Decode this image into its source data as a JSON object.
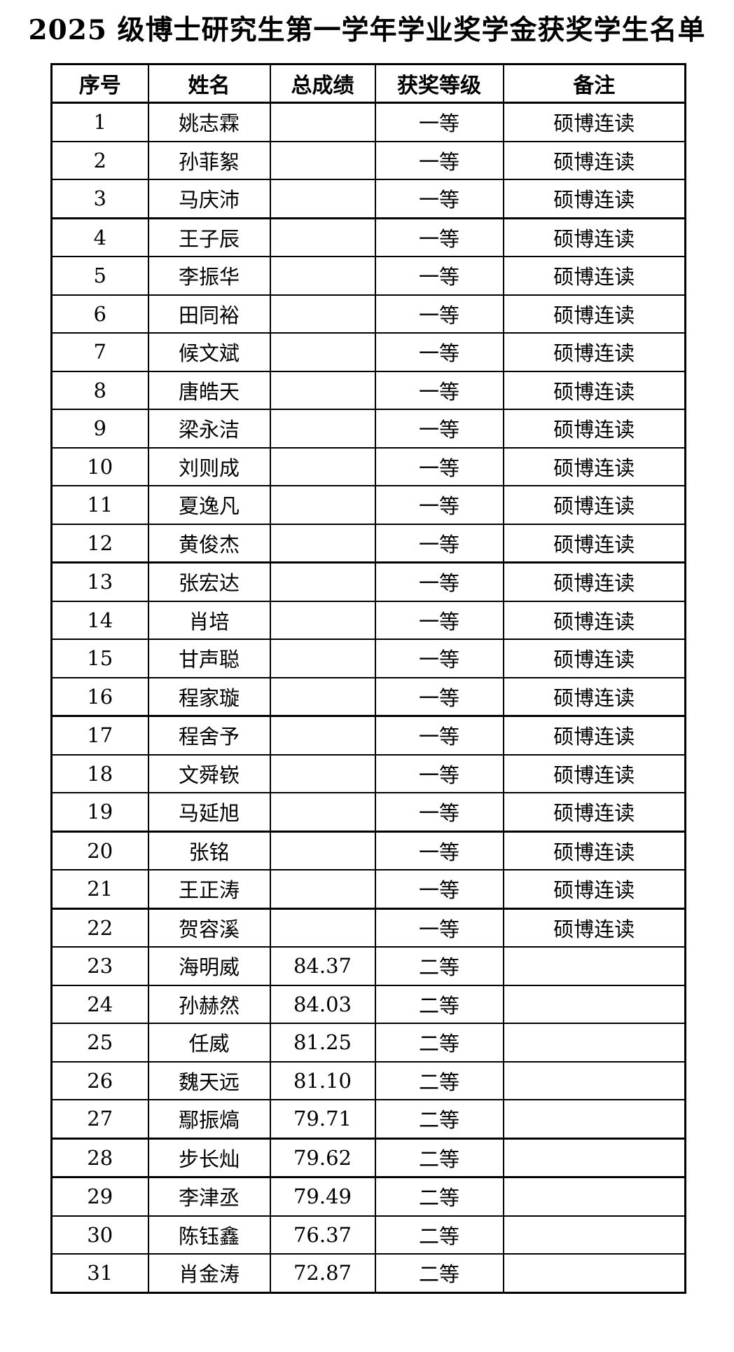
{
  "title": "2025 级博士研究生第一学年学业奖学金获奖学生名单",
  "table": {
    "columns": [
      "序号",
      "姓名",
      "总成绩",
      "获奖等级",
      "备注"
    ],
    "rows": [
      {
        "no": "1",
        "name": "姚志霖",
        "score": "",
        "level": "一等",
        "note": "硕博连读"
      },
      {
        "no": "2",
        "name": "孙菲絮",
        "score": "",
        "level": "一等",
        "note": "硕博连读"
      },
      {
        "no": "3",
        "name": "马庆沛",
        "score": "",
        "level": "一等",
        "note": "硕博连读"
      },
      {
        "no": "4",
        "name": "王子辰",
        "score": "",
        "level": "一等",
        "note": "硕博连读"
      },
      {
        "no": "5",
        "name": "李振华",
        "score": "",
        "level": "一等",
        "note": "硕博连读"
      },
      {
        "no": "6",
        "name": "田同裕",
        "score": "",
        "level": "一等",
        "note": "硕博连读"
      },
      {
        "no": "7",
        "name": "候文斌",
        "score": "",
        "level": "一等",
        "note": "硕博连读"
      },
      {
        "no": "8",
        "name": "唐皓天",
        "score": "",
        "level": "一等",
        "note": "硕博连读"
      },
      {
        "no": "9",
        "name": "梁永洁",
        "score": "",
        "level": "一等",
        "note": "硕博连读"
      },
      {
        "no": "10",
        "name": "刘则成",
        "score": "",
        "level": "一等",
        "note": "硕博连读"
      },
      {
        "no": "11",
        "name": "夏逸凡",
        "score": "",
        "level": "一等",
        "note": "硕博连读"
      },
      {
        "no": "12",
        "name": "黄俊杰",
        "score": "",
        "level": "一等",
        "note": "硕博连读"
      },
      {
        "no": "13",
        "name": "张宏达",
        "score": "",
        "level": "一等",
        "note": "硕博连读"
      },
      {
        "no": "14",
        "name": "肖培",
        "score": "",
        "level": "一等",
        "note": "硕博连读"
      },
      {
        "no": "15",
        "name": "甘声聪",
        "score": "",
        "level": "一等",
        "note": "硕博连读"
      },
      {
        "no": "16",
        "name": "程家璇",
        "score": "",
        "level": "一等",
        "note": "硕博连读"
      },
      {
        "no": "17",
        "name": "程舍予",
        "score": "",
        "level": "一等",
        "note": "硕博连读"
      },
      {
        "no": "18",
        "name": "文舜嵚",
        "score": "",
        "level": "一等",
        "note": "硕博连读"
      },
      {
        "no": "19",
        "name": "马延旭",
        "score": "",
        "level": "一等",
        "note": "硕博连读"
      },
      {
        "no": "20",
        "name": "张铭",
        "score": "",
        "level": "一等",
        "note": "硕博连读"
      },
      {
        "no": "21",
        "name": "王正涛",
        "score": "",
        "level": "一等",
        "note": "硕博连读"
      },
      {
        "no": "22",
        "name": "贺容溪",
        "score": "",
        "level": "一等",
        "note": "硕博连读"
      },
      {
        "no": "23",
        "name": "海明威",
        "score": "84.37",
        "level": "二等",
        "note": ""
      },
      {
        "no": "24",
        "name": "孙赫然",
        "score": "84.03",
        "level": "二等",
        "note": ""
      },
      {
        "no": "25",
        "name": "任威",
        "score": "81.25",
        "level": "二等",
        "note": ""
      },
      {
        "no": "26",
        "name": "魏天远",
        "score": "81.10",
        "level": "二等",
        "note": ""
      },
      {
        "no": "27",
        "name": "鄢振熇",
        "score": "79.71",
        "level": "二等",
        "note": ""
      },
      {
        "no": "28",
        "name": "步长灿",
        "score": "79.62",
        "level": "二等",
        "note": ""
      },
      {
        "no": "29",
        "name": "李津丞",
        "score": "79.49",
        "level": "二等",
        "note": ""
      },
      {
        "no": "30",
        "name": "陈钰鑫",
        "score": "76.37",
        "level": "二等",
        "note": ""
      },
      {
        "no": "31",
        "name": "肖金涛",
        "score": "72.87",
        "level": "二等",
        "note": ""
      }
    ]
  }
}
